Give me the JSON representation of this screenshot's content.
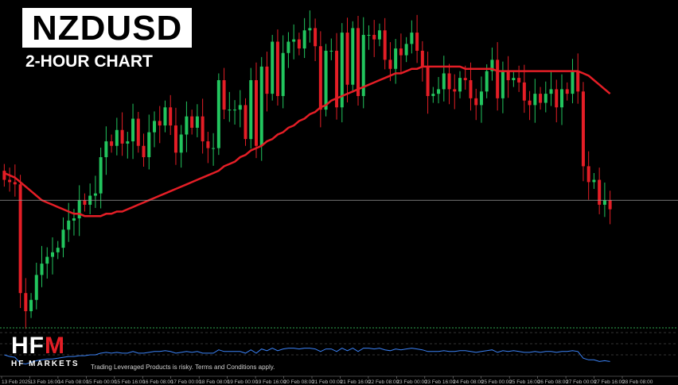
{
  "header": {
    "title": "NZDUSD",
    "subtitle": "2-HOUR CHART"
  },
  "branding": {
    "logo_text": "HFM",
    "logo_sub": "HF MARKETS",
    "disclaimer": "Trading Leveraged Products is risky. Terms and Conditions apply."
  },
  "colors": {
    "background": "#000000",
    "bull": "#22c55e",
    "bear": "#e41e26",
    "moving_average": "#e41e26",
    "indicator": "#3b82f6",
    "price_line": "#9a9a9a",
    "logo_accent": "#e41e26"
  },
  "chart_data": {
    "type": "candlestick",
    "title": "NZDUSD",
    "subtitle": "2-HOUR CHART",
    "x_tick_labels": [
      "13 Feb 2025",
      "13 Feb 16:00",
      "14 Feb 08:00",
      "15 Feb 00:00",
      "15 Feb 16:00",
      "16 Feb 08:00",
      "17 Feb 00:00",
      "18 Feb 08:00",
      "19 Feb 00:00",
      "19 Feb 16:00",
      "20 Feb 08:00",
      "21 Feb 00:00",
      "21 Feb 16:00",
      "22 Feb 08:00",
      "23 Feb 00:00",
      "23 Feb 16:00",
      "24 Feb 08:00",
      "25 Feb 00:00",
      "25 Feb 16:00",
      "26 Feb 08:00",
      "27 Feb 00:00",
      "27 Feb 16:00",
      "28 Feb 08:00"
    ],
    "close": [
      0.569,
      0.5689,
      0.5688,
      0.564,
      0.5632,
      0.5637,
      0.5648,
      0.5653,
      0.5656,
      0.5658,
      0.566,
      0.5668,
      0.5672,
      0.5673,
      0.5681,
      0.5679,
      0.5683,
      0.5684,
      0.57,
      0.5707,
      0.5705,
      0.5712,
      0.5706,
      0.5707,
      0.5717,
      0.5705,
      0.57,
      0.5711,
      0.5716,
      0.5714,
      0.5722,
      0.5714,
      0.5702,
      0.571,
      0.5718,
      0.5713,
      0.5718,
      0.5707,
      0.5704,
      0.5704,
      0.5734,
      0.5721,
      0.5721,
      0.5721,
      0.5723,
      0.5708,
      0.5734,
      0.5705,
      0.574,
      0.5728,
      0.5751,
      0.5727,
      0.5746,
      0.5751,
      0.5752,
      0.5748,
      0.5756,
      0.5757,
      0.5749,
      0.5721,
      0.5747,
      0.5747,
      0.5722,
      0.5755,
      0.5732,
      0.5757,
      0.5727,
      0.5754,
      0.5754,
      0.5752,
      0.5756,
      0.5743,
      0.5739,
      0.5748,
      0.5745,
      0.575,
      0.5755,
      0.5747,
      0.574,
      0.5727,
      0.5728,
      0.573,
      0.5737,
      0.573,
      0.5729,
      0.5735,
      0.5734,
      0.5726,
      0.5723,
      0.5729,
      0.5738,
      0.5743,
      0.5726,
      0.5738,
      0.5734,
      0.5735,
      0.5733,
      0.5725,
      0.5723,
      0.5728,
      0.5724,
      0.5728,
      0.573,
      0.5722,
      0.573,
      0.5728,
      0.5738,
      0.5729,
      0.5696,
      0.5689,
      0.569,
      0.5679,
      0.5681,
      0.5677
    ],
    "moving_average": [
      0.5693,
      0.5692,
      0.5691,
      0.5689,
      0.5687,
      0.5685,
      0.5683,
      0.5681,
      0.568,
      0.5679,
      0.5678,
      0.5677,
      0.5676,
      0.5675,
      0.5675,
      0.5674,
      0.5674,
      0.5674,
      0.5674,
      0.5675,
      0.5675,
      0.5676,
      0.5676,
      0.5677,
      0.5678,
      0.5679,
      0.568,
      0.5681,
      0.5682,
      0.5683,
      0.5684,
      0.5685,
      0.5686,
      0.5687,
      0.5688,
      0.5689,
      0.569,
      0.5691,
      0.5692,
      0.5693,
      0.5694,
      0.5696,
      0.5697,
      0.5698,
      0.57,
      0.5701,
      0.5703,
      0.5704,
      0.5705,
      0.5707,
      0.5708,
      0.571,
      0.5711,
      0.5713,
      0.5714,
      0.5716,
      0.5717,
      0.5719,
      0.572,
      0.5722,
      0.5723,
      0.5725,
      0.5726,
      0.5727,
      0.5728,
      0.5729,
      0.573,
      0.5731,
      0.5732,
      0.5733,
      0.5734,
      0.5735,
      0.5736,
      0.5737,
      0.5737,
      0.5738,
      0.5739,
      0.5739,
      0.574,
      0.574,
      0.574,
      0.574,
      0.574,
      0.574,
      0.574,
      0.574,
      0.5739,
      0.5739,
      0.5739,
      0.5739,
      0.5739,
      0.5739,
      0.5738,
      0.5738,
      0.5738,
      0.5738,
      0.5738,
      0.5738,
      0.5738,
      0.5738,
      0.5738,
      0.5738,
      0.5738,
      0.5738,
      0.5738,
      0.5738,
      0.5738,
      0.5738,
      0.5737,
      0.5736,
      0.5734,
      0.5732,
      0.573,
      0.5728
    ],
    "current_price": 0.5681,
    "ylim": [
      0.5625,
      0.5768
    ],
    "grid": false,
    "indicator": [
      0.5,
      0.48,
      0.47,
      0.4,
      0.39,
      0.41,
      0.43,
      0.44,
      0.45,
      0.45,
      0.46,
      0.47,
      0.48,
      0.48,
      0.49,
      0.49,
      0.5,
      0.5,
      0.52,
      0.53,
      0.52,
      0.53,
      0.52,
      0.52,
      0.54,
      0.52,
      0.52,
      0.53,
      0.54,
      0.54,
      0.55,
      0.54,
      0.52,
      0.53,
      0.54,
      0.53,
      0.54,
      0.52,
      0.52,
      0.52,
      0.56,
      0.54,
      0.54,
      0.54,
      0.54,
      0.52,
      0.56,
      0.52,
      0.57,
      0.55,
      0.58,
      0.55,
      0.57,
      0.58,
      0.58,
      0.57,
      0.58,
      0.58,
      0.57,
      0.54,
      0.57,
      0.57,
      0.54,
      0.58,
      0.55,
      0.58,
      0.54,
      0.58,
      0.58,
      0.57,
      0.58,
      0.56,
      0.55,
      0.57,
      0.56,
      0.57,
      0.58,
      0.57,
      0.56,
      0.54,
      0.54,
      0.54,
      0.55,
      0.54,
      0.54,
      0.55,
      0.55,
      0.54,
      0.53,
      0.54,
      0.55,
      0.56,
      0.53,
      0.55,
      0.54,
      0.55,
      0.54,
      0.53,
      0.53,
      0.54,
      0.53,
      0.54,
      0.54,
      0.53,
      0.54,
      0.54,
      0.55,
      0.54,
      0.46,
      0.44,
      0.44,
      0.42,
      0.43,
      0.42
    ]
  }
}
